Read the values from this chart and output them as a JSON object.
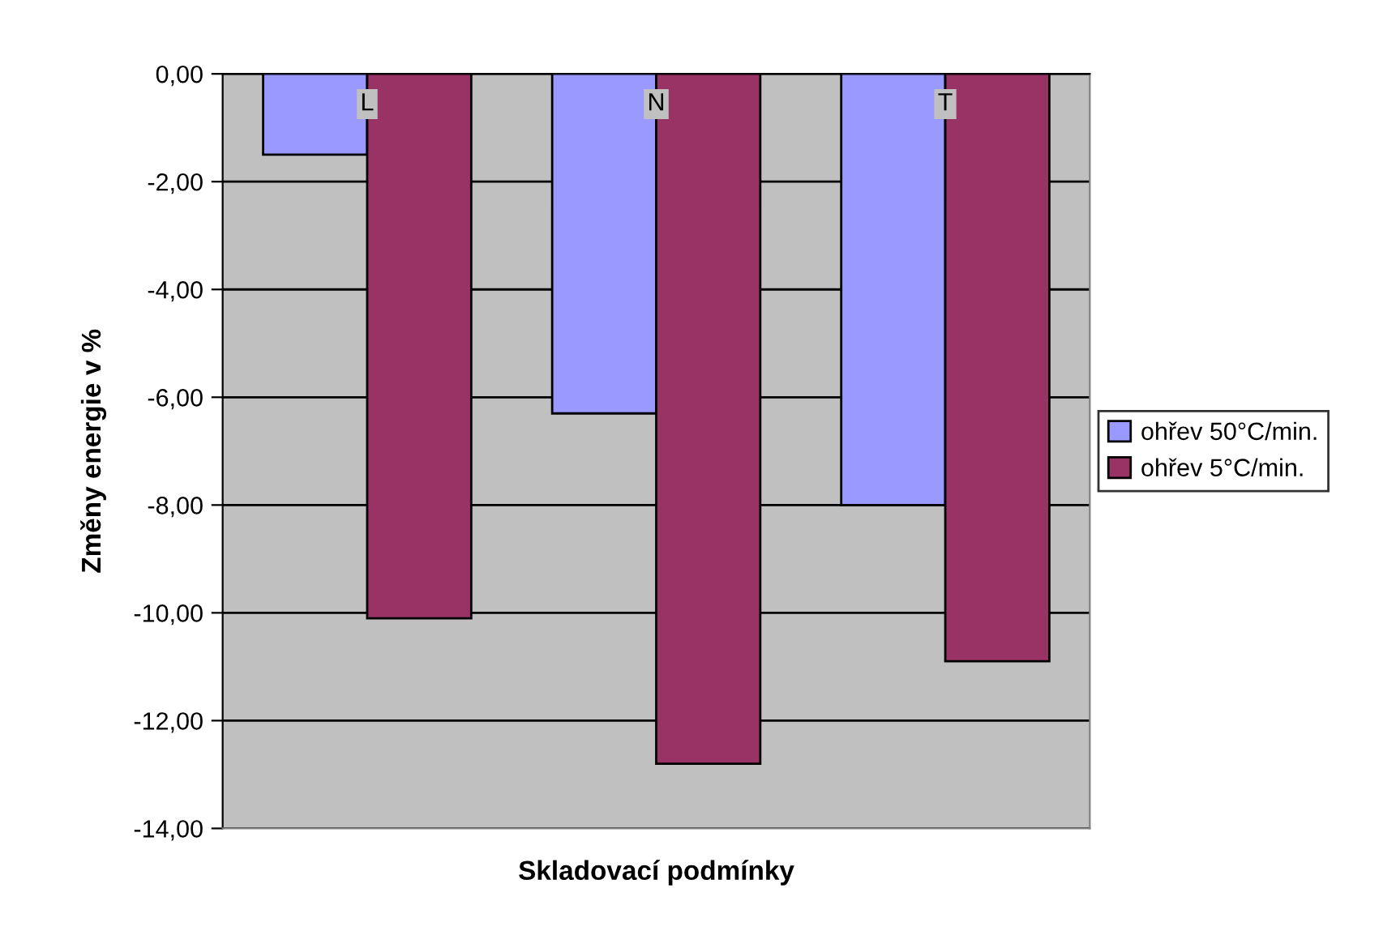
{
  "chart_data": {
    "type": "bar",
    "xlabel": "Skladovací podmínky",
    "ylabel": "Změny energie v %",
    "categories": [
      "L",
      "N",
      "T"
    ],
    "series": [
      {
        "name": "ohřev 50°C/min.",
        "color": "#9999ff",
        "values": [
          -1.5,
          -6.3,
          -8.0
        ]
      },
      {
        "name": "ohřev 5°C/min.",
        "color": "#993366",
        "values": [
          -10.1,
          -12.8,
          -10.9
        ]
      }
    ],
    "ylim": [
      -14,
      0
    ],
    "yticks": [
      {
        "value": 0,
        "label": "0,00"
      },
      {
        "value": -2,
        "label": "-2,00"
      },
      {
        "value": -4,
        "label": "-4,00"
      },
      {
        "value": -6,
        "label": "-6,00"
      },
      {
        "value": -8,
        "label": "-8,00"
      },
      {
        "value": -10,
        "label": "-10,00"
      },
      {
        "value": -12,
        "label": "-12,00"
      },
      {
        "value": -14,
        "label": "-14,00"
      }
    ],
    "grid": "y",
    "legend": "right"
  }
}
